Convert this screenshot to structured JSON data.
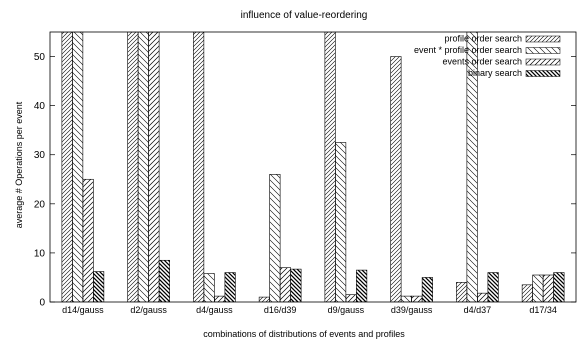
{
  "chart_data": {
    "type": "bar",
    "title": "influence of value-reordering",
    "xlabel": "combinations of distributions of events and profiles",
    "ylabel": "average # Operations per event",
    "ylim": [
      0,
      55
    ],
    "yticks": [
      0,
      10,
      20,
      30,
      40,
      50
    ],
    "categories": [
      "d14/gauss",
      "d2/gauss",
      "d4/gauss",
      "d16/d39",
      "d9/gauss",
      "d39/gauss",
      "d4/d37",
      "d17/34"
    ],
    "grid": false,
    "legend_position": "top-right",
    "series": [
      {
        "name": "profile order search",
        "pattern": "hatch-fwd-dense",
        "values": [
          55,
          55,
          55,
          1,
          55,
          50,
          4,
          3.5
        ]
      },
      {
        "name": "event * profile order search",
        "pattern": "hatch-back-sparse",
        "values": [
          55,
          55,
          5.8,
          26,
          32.5,
          1.2,
          55,
          5.5
        ]
      },
      {
        "name": "events order search",
        "pattern": "hatch-fwd-sparse",
        "values": [
          25,
          55,
          1.2,
          7,
          1.5,
          1.2,
          1.8,
          5.5
        ]
      },
      {
        "name": "binary search",
        "pattern": "hatch-back-heavy",
        "values": [
          6.2,
          8.5,
          6,
          6.7,
          6.5,
          5,
          6,
          6
        ]
      }
    ]
  }
}
